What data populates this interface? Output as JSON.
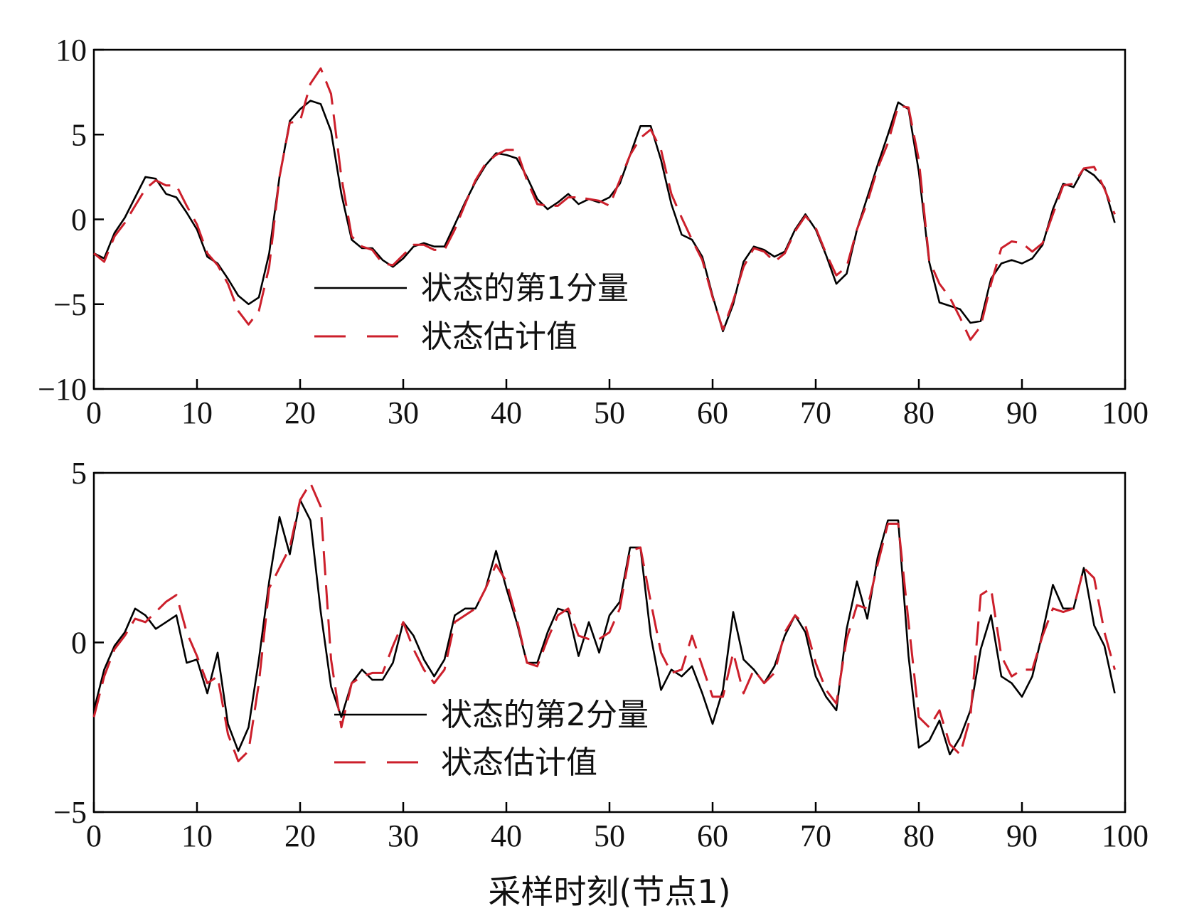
{
  "chart_data": [
    {
      "type": "line",
      "title": "",
      "xlabel": "",
      "ylabel": "",
      "xlim": [
        0,
        100
      ],
      "ylim": [
        -10,
        10
      ],
      "xticks": [
        0,
        10,
        20,
        30,
        40,
        50,
        60,
        70,
        80,
        90,
        100
      ],
      "yticks": [
        10,
        5,
        0,
        -5,
        -10
      ],
      "grid": false,
      "legend_position": "bottom-center",
      "series": [
        {
          "name": "状态的第1分量",
          "color": "#000000",
          "style": "solid",
          "x": [
            0,
            1,
            2,
            3,
            4,
            5,
            6,
            7,
            8,
            9,
            10,
            11,
            12,
            13,
            14,
            15,
            16,
            17,
            18,
            19,
            20,
            21,
            22,
            23,
            24,
            25,
            26,
            27,
            28,
            29,
            30,
            31,
            32,
            33,
            34,
            35,
            36,
            37,
            38,
            39,
            40,
            41,
            42,
            43,
            44,
            45,
            46,
            47,
            48,
            49,
            50,
            51,
            52,
            53,
            54,
            55,
            56,
            57,
            58,
            59,
            60,
            61,
            62,
            63,
            64,
            65,
            66,
            67,
            68,
            69,
            70,
            71,
            72,
            73,
            74,
            75,
            76,
            77,
            78,
            79,
            80,
            81,
            82,
            83,
            84,
            85,
            86,
            87,
            88,
            89,
            90,
            91,
            92,
            93,
            94,
            95,
            96,
            97,
            98,
            99
          ],
          "y": [
            -2.0,
            -2.3,
            -0.8,
            0.1,
            1.3,
            2.5,
            2.4,
            1.5,
            1.3,
            0.4,
            -0.6,
            -2.2,
            -2.6,
            -3.5,
            -4.5,
            -5.0,
            -4.6,
            -2.0,
            2.5,
            5.8,
            6.5,
            7.0,
            6.8,
            5.2,
            1.5,
            -1.2,
            -1.7,
            -1.7,
            -2.4,
            -2.8,
            -2.3,
            -1.6,
            -1.4,
            -1.6,
            -1.6,
            -0.3,
            1.0,
            2.2,
            3.2,
            3.9,
            3.8,
            3.6,
            2.5,
            1.2,
            0.6,
            1.0,
            1.5,
            0.9,
            1.2,
            1.0,
            1.3,
            2.1,
            3.8,
            5.5,
            5.5,
            3.5,
            0.9,
            -0.9,
            -1.2,
            -2.2,
            -4.5,
            -6.6,
            -5.0,
            -2.5,
            -1.6,
            -1.8,
            -2.2,
            -1.9,
            -0.6,
            0.3,
            -0.6,
            -2.1,
            -3.8,
            -3.2,
            -0.6,
            1.3,
            3.2,
            5.0,
            6.9,
            6.5,
            2.8,
            -2.5,
            -4.9,
            -5.1,
            -5.3,
            -6.1,
            -6.0,
            -3.5,
            -2.6,
            -2.4,
            -2.6,
            -2.3,
            -1.5,
            0.6,
            2.1,
            1.9,
            3.0,
            2.6,
            1.9,
            -0.2
          ]
        },
        {
          "name": "状态估计值",
          "color": "#cc1f2b",
          "style": "dashed",
          "x": [
            0,
            1,
            2,
            3,
            4,
            5,
            6,
            7,
            8,
            9,
            10,
            11,
            12,
            13,
            14,
            15,
            16,
            17,
            18,
            19,
            20,
            21,
            22,
            23,
            24,
            25,
            26,
            27,
            28,
            29,
            30,
            31,
            32,
            33,
            34,
            35,
            36,
            37,
            38,
            39,
            40,
            41,
            42,
            43,
            44,
            45,
            46,
            47,
            48,
            49,
            50,
            51,
            52,
            53,
            54,
            55,
            56,
            57,
            58,
            59,
            60,
            61,
            62,
            63,
            64,
            65,
            66,
            67,
            68,
            69,
            70,
            71,
            72,
            73,
            74,
            75,
            76,
            77,
            78,
            79,
            80,
            81,
            82,
            83,
            84,
            85,
            86,
            87,
            88,
            89,
            90,
            91,
            92,
            93,
            94,
            95,
            96,
            97,
            98,
            99
          ],
          "y": [
            -2.0,
            -2.5,
            -1.0,
            -0.2,
            0.8,
            1.8,
            2.3,
            2.0,
            2.0,
            0.8,
            -0.3,
            -2.0,
            -2.7,
            -3.8,
            -5.4,
            -6.2,
            -5.4,
            -2.8,
            2.5,
            5.7,
            5.8,
            8.0,
            8.9,
            7.4,
            2.5,
            -1.0,
            -1.6,
            -1.8,
            -2.6,
            -2.7,
            -2.1,
            -1.5,
            -1.5,
            -1.8,
            -1.8,
            -0.6,
            0.9,
            2.3,
            3.3,
            3.8,
            4.1,
            4.1,
            2.3,
            0.9,
            0.8,
            0.8,
            1.3,
            1.3,
            1.2,
            1.1,
            0.8,
            2.3,
            3.8,
            4.8,
            5.3,
            4.1,
            1.5,
            0.1,
            -1.2,
            -2.4,
            -4.6,
            -6.5,
            -4.8,
            -2.8,
            -1.7,
            -1.9,
            -2.5,
            -2.0,
            -0.7,
            0.2,
            -0.5,
            -2.0,
            -3.3,
            -2.8,
            -0.6,
            1.0,
            3.0,
            4.5,
            6.7,
            6.6,
            3.5,
            -2.4,
            -3.8,
            -4.6,
            -5.8,
            -7.1,
            -6.3,
            -3.8,
            -1.7,
            -1.3,
            -1.4,
            -1.9,
            -1.4,
            0.3,
            2.0,
            2.1,
            3.0,
            3.1,
            1.8,
            0.3
          ]
        }
      ]
    },
    {
      "type": "line",
      "title": "",
      "xlabel": "采样时刻(节点1)",
      "ylabel": "",
      "xlim": [
        0,
        100
      ],
      "ylim": [
        -5,
        5
      ],
      "xticks": [
        0,
        10,
        20,
        30,
        40,
        50,
        60,
        70,
        80,
        90,
        100
      ],
      "yticks": [
        5,
        0,
        -5
      ],
      "grid": false,
      "legend_position": "bottom-center",
      "series": [
        {
          "name": "状态的第2分量",
          "color": "#000000",
          "style": "solid",
          "x": [
            0,
            1,
            2,
            3,
            4,
            5,
            6,
            7,
            8,
            9,
            10,
            11,
            12,
            13,
            14,
            15,
            16,
            17,
            18,
            19,
            20,
            21,
            22,
            23,
            24,
            25,
            26,
            27,
            28,
            29,
            30,
            31,
            32,
            33,
            34,
            35,
            36,
            37,
            38,
            39,
            40,
            41,
            42,
            43,
            44,
            45,
            46,
            47,
            48,
            49,
            50,
            51,
            52,
            53,
            54,
            55,
            56,
            57,
            58,
            59,
            60,
            61,
            62,
            63,
            64,
            65,
            66,
            67,
            68,
            69,
            70,
            71,
            72,
            73,
            74,
            75,
            76,
            77,
            78,
            79,
            80,
            81,
            82,
            83,
            84,
            85,
            86,
            87,
            88,
            89,
            90,
            91,
            92,
            93,
            94,
            95,
            96,
            97,
            98,
            99
          ],
          "y": [
            -2.0,
            -0.8,
            -0.1,
            0.3,
            1.0,
            0.8,
            0.4,
            0.6,
            0.8,
            -0.6,
            -0.5,
            -1.5,
            -0.3,
            -2.4,
            -3.2,
            -2.5,
            -0.5,
            1.8,
            3.7,
            2.6,
            4.2,
            3.6,
            0.9,
            -1.3,
            -2.2,
            -1.2,
            -0.8,
            -1.1,
            -1.1,
            -0.6,
            0.6,
            0.2,
            -0.5,
            -1.0,
            -0.5,
            0.8,
            1.0,
            1.0,
            1.6,
            2.7,
            1.6,
            0.6,
            -0.6,
            -0.6,
            0.3,
            1.0,
            0.9,
            -0.4,
            0.6,
            -0.3,
            0.8,
            1.2,
            2.8,
            2.8,
            0.2,
            -1.4,
            -0.8,
            -1.0,
            -0.7,
            -1.5,
            -2.4,
            -1.4,
            0.9,
            -0.5,
            -0.8,
            -1.2,
            -0.7,
            0.2,
            0.8,
            0.3,
            -1.0,
            -1.6,
            -2.0,
            0.4,
            1.8,
            0.7,
            2.5,
            3.6,
            3.6,
            -0.4,
            -3.1,
            -2.9,
            -2.3,
            -3.3,
            -2.8,
            -2.0,
            -0.2,
            0.8,
            -1.0,
            -1.2,
            -1.6,
            -1.0,
            0.3,
            1.7,
            1.0,
            1.0,
            2.2,
            0.5,
            -0.1,
            -1.5
          ]
        },
        {
          "name": "状态估计值",
          "color": "#cc1f2b",
          "style": "dashed",
          "x": [
            0,
            1,
            2,
            3,
            4,
            5,
            6,
            7,
            8,
            9,
            10,
            11,
            12,
            13,
            14,
            15,
            16,
            17,
            18,
            19,
            20,
            21,
            22,
            23,
            24,
            25,
            26,
            27,
            28,
            29,
            30,
            31,
            32,
            33,
            34,
            35,
            36,
            37,
            38,
            39,
            40,
            41,
            42,
            43,
            44,
            45,
            46,
            47,
            48,
            49,
            50,
            51,
            52,
            53,
            54,
            55,
            56,
            57,
            58,
            59,
            60,
            61,
            62,
            63,
            64,
            65,
            66,
            67,
            68,
            69,
            70,
            71,
            72,
            73,
            74,
            75,
            76,
            77,
            78,
            79,
            80,
            81,
            82,
            83,
            84,
            85,
            86,
            87,
            88,
            89,
            90,
            91,
            92,
            93,
            94,
            95,
            96,
            97,
            98,
            99
          ],
          "y": [
            -2.2,
            -1.0,
            -0.2,
            0.2,
            0.7,
            0.6,
            0.9,
            1.2,
            1.4,
            0.3,
            -0.4,
            -1.2,
            -1.0,
            -2.7,
            -3.5,
            -3.2,
            -1.2,
            1.6,
            2.2,
            2.8,
            4.2,
            4.7,
            4.0,
            -0.5,
            -2.5,
            -1.2,
            -1.0,
            -0.9,
            -0.9,
            -0.1,
            0.6,
            -0.2,
            -0.8,
            -1.2,
            -0.8,
            0.6,
            0.8,
            1.0,
            1.6,
            2.3,
            1.8,
            0.7,
            -0.6,
            -0.7,
            0.1,
            0.8,
            1.0,
            0.2,
            0.1,
            0.1,
            0.3,
            1.0,
            2.7,
            2.8,
            1.2,
            -0.3,
            -0.9,
            -0.8,
            0.2,
            -0.7,
            -1.6,
            -1.6,
            -0.3,
            -1.5,
            -0.8,
            -1.2,
            -0.9,
            0.3,
            0.8,
            0.5,
            -0.6,
            -1.4,
            -1.8,
            0.1,
            1.1,
            1.0,
            2.3,
            3.5,
            3.5,
            0.6,
            -2.2,
            -2.5,
            -2.0,
            -3.0,
            -3.3,
            -2.2,
            1.4,
            1.6,
            -0.4,
            -1.0,
            -0.8,
            -0.8,
            0.2,
            1.0,
            0.9,
            1.0,
            2.2,
            1.9,
            0.3,
            -0.8
          ]
        }
      ]
    }
  ]
}
